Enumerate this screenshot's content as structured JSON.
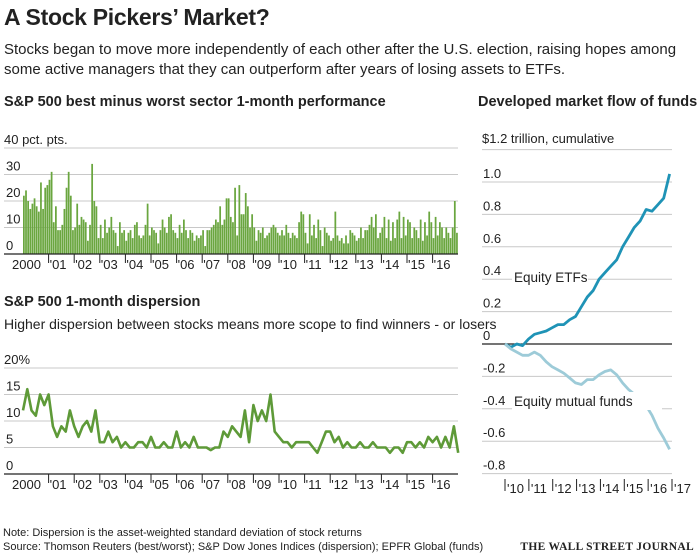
{
  "title": "A Stock Pickers’ Market?",
  "subtitle_lines": [
    "Stocks began to move more independently of each other after the U.S. election, raising hopes among",
    "some active managers that they can outperform after years of losing assets to ETFs."
  ],
  "footer": {
    "note": "Note: Dispersion is the asset-weighted standard deviation of stock returns",
    "source": "Source: Thomson Reuters (best/worst); S&P Dow Jones Indices (dispersion); EPFR Global (funds)",
    "logo": "THE WALL STREET JOURNAL"
  },
  "colors": {
    "green": "#6aa63f",
    "line_green": "#5e9a38",
    "etf": "#1f93b6",
    "mf": "#9dcbd8",
    "grid": "#c8c8c8"
  },
  "chart_data": [
    {
      "type": "bar",
      "title": "S&P 500 best minus worst sector 1-month performance",
      "unit_label": "40 pct. pts.",
      "ylim": [
        0,
        40
      ],
      "yticks": [
        "0",
        "10",
        "20",
        "30"
      ],
      "xticks": [
        "2000",
        "'01",
        "'02",
        "'03",
        "'04",
        "'05",
        "'06",
        "'07",
        "'08",
        "'09",
        "'10",
        "'11",
        "'12",
        "'13",
        "'14",
        "'15",
        "'16"
      ],
      "start_year": 2000,
      "frequency": "monthly",
      "values": [
        22,
        24,
        20,
        17,
        19,
        21,
        18,
        16,
        27,
        17,
        25,
        26,
        28,
        31,
        12,
        18,
        9,
        9,
        11,
        17,
        25,
        31,
        22,
        9,
        10,
        19,
        11,
        14,
        13,
        12,
        5,
        11,
        34,
        20,
        18,
        6,
        11,
        6,
        13,
        8,
        10,
        14,
        9,
        8,
        3,
        12,
        8,
        9,
        5,
        8,
        9,
        6,
        11,
        12,
        7,
        6,
        7,
        11,
        19,
        7,
        10,
        9,
        8,
        4,
        9,
        13,
        10,
        8,
        14,
        15,
        9,
        8,
        6,
        11,
        8,
        13,
        9,
        6,
        9,
        8,
        5,
        7,
        6,
        7,
        9,
        3,
        9,
        9,
        10,
        11,
        13,
        12,
        18,
        11,
        13,
        21,
        21,
        14,
        12,
        25,
        7,
        26,
        15,
        15,
        23,
        18,
        10,
        15,
        10,
        5,
        9,
        8,
        10,
        6,
        7,
        8,
        10,
        11,
        10,
        8,
        7,
        9,
        7,
        11,
        8,
        6,
        8,
        7,
        6,
        12,
        16,
        15,
        8,
        4,
        15,
        7,
        11,
        6,
        13,
        9,
        3,
        10,
        8,
        7,
        5,
        6,
        16,
        7,
        5,
        6,
        4,
        7,
        4,
        9,
        8,
        7,
        5,
        6,
        10,
        6,
        9,
        9,
        11,
        14,
        10,
        15,
        6,
        8,
        10,
        14,
        6,
        13,
        5,
        12,
        6,
        13,
        16,
        6,
        14,
        7,
        13,
        12,
        6,
        10,
        9,
        6,
        13,
        5,
        12,
        7,
        16,
        12,
        6,
        14,
        7,
        12,
        10,
        6,
        10,
        8,
        6,
        10,
        20,
        8
      ]
    },
    {
      "type": "line",
      "title": "S&P 500 1-month dispersion",
      "subtitle": "Higher dispersion between stocks means more scope to find winners - or losers",
      "unit_label": "20%",
      "ylim": [
        0,
        20
      ],
      "yticks": [
        "0",
        "5",
        "10",
        "15"
      ],
      "xticks": [
        "2000",
        "'01",
        "'02",
        "'03",
        "'04",
        "'05",
        "'06",
        "'07",
        "'08",
        "'09",
        "'10",
        "'11",
        "'12",
        "'13",
        "'14",
        "'15",
        "'16"
      ],
      "start_year": 2000,
      "frequency": "bimonthly",
      "values": [
        12,
        16,
        12,
        11,
        15,
        13,
        15,
        9,
        7,
        9,
        8,
        12,
        9,
        7,
        9,
        10,
        8,
        12,
        6,
        6,
        8,
        6,
        7,
        5,
        6,
        5,
        5,
        6,
        6,
        5,
        7,
        5,
        5,
        6,
        5,
        5,
        8,
        5,
        6,
        5,
        7,
        5,
        5,
        5,
        4.5,
        5,
        5,
        8,
        7,
        9,
        8,
        7,
        12,
        6,
        13,
        10,
        12,
        10,
        15,
        8,
        7,
        6,
        6,
        5,
        6,
        6,
        6,
        6,
        5,
        4,
        6,
        8,
        8,
        6,
        7,
        5,
        6,
        5,
        5,
        6,
        5,
        5,
        6,
        5,
        5,
        5,
        4,
        5,
        5,
        4,
        6,
        6,
        5,
        6,
        5,
        7,
        6,
        7,
        5,
        7,
        5,
        9,
        4
      ]
    },
    {
      "type": "line",
      "title": "Developed market flow of funds",
      "unit_label": "$1.2 trillion, cumulative",
      "ylim": [
        -0.8,
        1.2
      ],
      "yticks": [
        "-0.8",
        "-0.6",
        "-0.4",
        "-0.2",
        "0",
        "0.2",
        "0.4",
        "0.6",
        "0.8",
        "1.0"
      ],
      "xticks": [
        "'10",
        "'11",
        "'12",
        "'13",
        "'14",
        "'15",
        "'16",
        "'17"
      ],
      "x_range": [
        2010,
        2016.9
      ],
      "series": [
        {
          "name": "Equity ETFs",
          "values": [
            0,
            -0.02,
            0.0,
            -0.01,
            0.03,
            0.06,
            0.07,
            0.08,
            0.1,
            0.12,
            0.12,
            0.15,
            0.17,
            0.23,
            0.29,
            0.33,
            0.4,
            0.44,
            0.48,
            0.52,
            0.6,
            0.66,
            0.72,
            0.76,
            0.83,
            0.82,
            0.86,
            0.9,
            1.05
          ]
        },
        {
          "name": "Equity mutual funds",
          "values": [
            0,
            -0.03,
            -0.05,
            -0.07,
            -0.07,
            -0.05,
            -0.07,
            -0.11,
            -0.14,
            -0.16,
            -0.18,
            -0.21,
            -0.24,
            -0.25,
            -0.22,
            -0.22,
            -0.19,
            -0.17,
            -0.16,
            -0.19,
            -0.24,
            -0.28,
            -0.31,
            -0.34,
            -0.38,
            -0.44,
            -0.52,
            -0.58,
            -0.65
          ]
        }
      ]
    }
  ]
}
